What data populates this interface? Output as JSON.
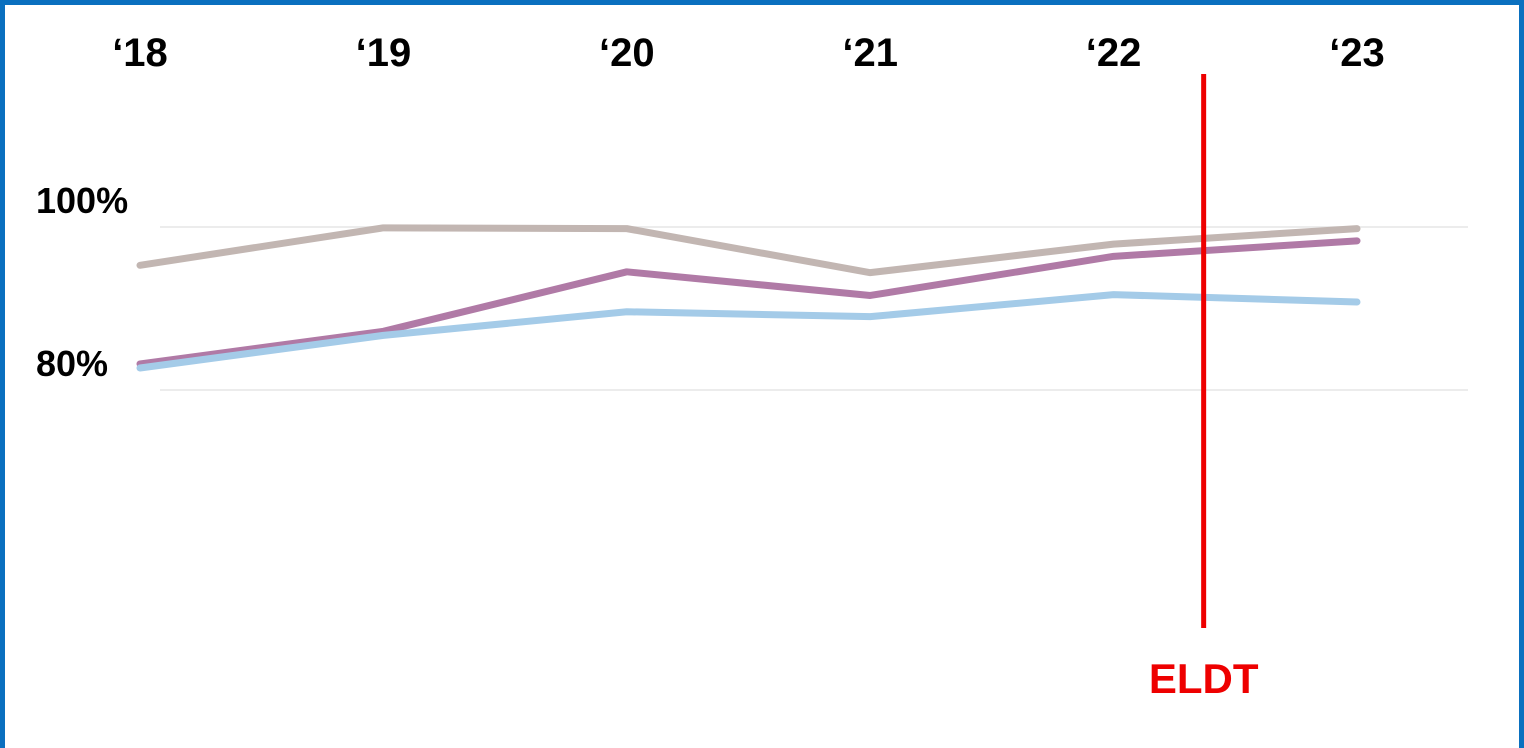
{
  "chart_data": {
    "type": "line",
    "title": "",
    "xlabel": "",
    "ylabel": "",
    "categories": [
      "‘18",
      "‘19",
      "‘20",
      "‘21",
      "‘22",
      "‘23"
    ],
    "x": [
      2018,
      2019,
      2020,
      2021,
      2022,
      2023
    ],
    "y_ticks": [
      {
        "value": 80,
        "label": "80%"
      },
      {
        "value": 100,
        "label": "100%"
      }
    ],
    "ylim": [
      60,
      110
    ],
    "grid": true,
    "legend": "none",
    "series": [
      {
        "color": "#c2b6b2",
        "values": [
          95.3,
          99.9,
          99.8,
          94.4,
          97.9,
          99.8
        ]
      },
      {
        "color": "#b07aa6",
        "values": [
          83.2,
          87.2,
          94.5,
          91.6,
          96.4,
          98.3
        ]
      },
      {
        "color": "#a4cbe8",
        "values": [
          82.7,
          86.7,
          89.6,
          89.0,
          91.7,
          90.8
        ]
      }
    ],
    "annotations": [
      {
        "type": "vline",
        "x": 2022.37,
        "label": "ELDT",
        "color": "#ee0000"
      }
    ]
  }
}
